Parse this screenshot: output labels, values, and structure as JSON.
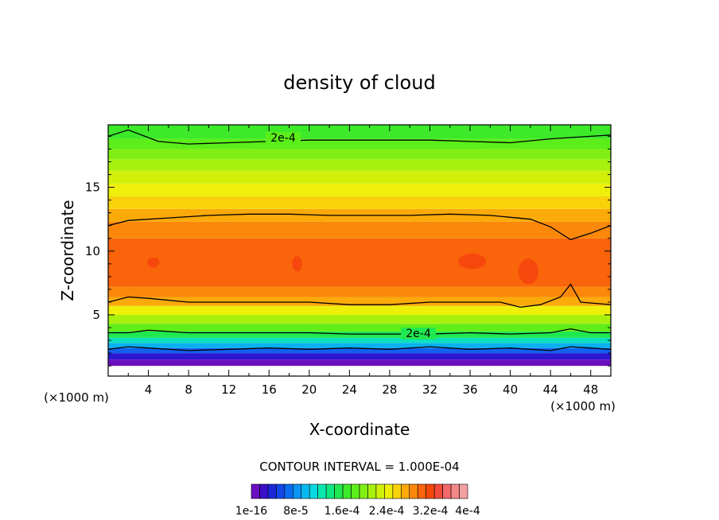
{
  "chart_data": {
    "type": "heatmap",
    "title": "density of cloud",
    "xlabel": "X-coordinate",
    "ylabel": "Z-coordinate",
    "x_unit_left": "(×1000 m)",
    "x_unit_right": "(×1000 m)",
    "xlim": [
      0,
      50
    ],
    "ylim": [
      0.2,
      19.9
    ],
    "x_ticks": [
      "4",
      "8",
      "12",
      "16",
      "20",
      "24",
      "28",
      "32",
      "36",
      "40",
      "44",
      "48"
    ],
    "y_ticks": [
      "5",
      "10",
      "15"
    ],
    "contour_labels": [
      "2e-4",
      "2e-4"
    ],
    "contour_interval_text": "CONTOUR INTERVAL = 1.000E-04",
    "colorbar_labels": [
      "1e-16",
      "8e-5",
      "1.6e-4",
      "2.4e-4",
      "3.2e-4",
      "4e-4"
    ],
    "colorbar_colors": [
      "#6a0fbf",
      "#3a10c8",
      "#1c28d8",
      "#1248e6",
      "#0a6cf0",
      "#0a94f4",
      "#0ab8f0",
      "#0ad8e0",
      "#0ae8b0",
      "#10e880",
      "#20e850",
      "#3cea2a",
      "#5cee1a",
      "#80f014",
      "#a8f00e",
      "#d0f00a",
      "#eef00a",
      "#f8d20a",
      "#fbaa0a",
      "#fb880a",
      "#fa640a",
      "#f6480c",
      "#f24a3a",
      "#f26a6a",
      "#f48888",
      "#f4a0a0"
    ],
    "bands": [
      {
        "z": 1.0,
        "color": "#ffffff"
      },
      {
        "z": 1.5,
        "color": "#6a0fbf"
      },
      {
        "z": 2.0,
        "color": "#2c18d0"
      },
      {
        "z": 2.4,
        "color": "#1260ee"
      },
      {
        "z": 2.8,
        "color": "#0ab0f0"
      },
      {
        "z": 3.2,
        "color": "#0ae0c0"
      },
      {
        "z": 3.7,
        "color": "#20e850"
      },
      {
        "z": 4.3,
        "color": "#60ee18"
      },
      {
        "z": 5.0,
        "color": "#a8f00e"
      },
      {
        "z": 5.7,
        "color": "#eef00a"
      },
      {
        "z": 6.4,
        "color": "#fbaa0a"
      },
      {
        "z": 7.2,
        "color": "#fb880a"
      },
      {
        "z": 11.0,
        "color": "#fa640a"
      },
      {
        "z": 12.3,
        "color": "#fb880a"
      },
      {
        "z": 13.3,
        "color": "#fbaa0a"
      },
      {
        "z": 14.3,
        "color": "#f8d20a"
      },
      {
        "z": 15.3,
        "color": "#eef00a"
      },
      {
        "z": 16.3,
        "color": "#d0f00a"
      },
      {
        "z": 17.2,
        "color": "#a8f00e"
      },
      {
        "z": 18.0,
        "color": "#80f014"
      },
      {
        "z": 18.8,
        "color": "#5cee1a"
      },
      {
        "z": 19.9,
        "color": "#3cea2a"
      }
    ],
    "hotspots": [
      {
        "x": 4.5,
        "z": 9.1,
        "rx": 0.6,
        "rz": 0.4,
        "color": "#f6480c"
      },
      {
        "x": 18.8,
        "z": 9.0,
        "rx": 0.5,
        "rz": 0.6,
        "color": "#f6480c"
      },
      {
        "x": 36.2,
        "z": 9.2,
        "rx": 1.4,
        "rz": 0.6,
        "color": "#f6480c"
      },
      {
        "x": 41.8,
        "z": 8.4,
        "rx": 1.0,
        "rz": 1.0,
        "color": "#f6480c"
      }
    ],
    "contours": [
      {
        "x": [
          0,
          2,
          5,
          8,
          12,
          16,
          20,
          24,
          28,
          32,
          36,
          40,
          44,
          48,
          50
        ],
        "z": [
          19.0,
          19.5,
          18.6,
          18.4,
          18.5,
          18.6,
          18.7,
          18.7,
          18.7,
          18.7,
          18.6,
          18.5,
          18.8,
          19.0,
          19.1
        ]
      },
      {
        "x": [
          0,
          2,
          6,
          10,
          14,
          18,
          22,
          26,
          30,
          34,
          38,
          42,
          44,
          46,
          48,
          50
        ],
        "z": [
          12.0,
          12.4,
          12.6,
          12.8,
          12.9,
          12.9,
          12.8,
          12.8,
          12.8,
          12.9,
          12.8,
          12.5,
          11.9,
          10.9,
          11.4,
          12.0
        ]
      },
      {
        "x": [
          0,
          2,
          4,
          8,
          12,
          16,
          20,
          24,
          28,
          32,
          36,
          39,
          41,
          43,
          45,
          46,
          47,
          50
        ],
        "z": [
          6.0,
          6.4,
          6.3,
          6.0,
          6.0,
          6.0,
          6.0,
          5.8,
          5.8,
          6.0,
          6.0,
          6.0,
          5.6,
          5.8,
          6.4,
          7.4,
          6.0,
          5.8
        ]
      },
      {
        "x": [
          0,
          2,
          4,
          8,
          12,
          16,
          20,
          24,
          28,
          32,
          36,
          40,
          44,
          46,
          48,
          50
        ],
        "z": [
          3.6,
          3.6,
          3.8,
          3.6,
          3.6,
          3.6,
          3.6,
          3.5,
          3.5,
          3.5,
          3.6,
          3.5,
          3.6,
          3.9,
          3.6,
          3.6
        ]
      },
      {
        "x": [
          0,
          2,
          4,
          8,
          12,
          16,
          20,
          24,
          28,
          32,
          36,
          40,
          44,
          46,
          48,
          50
        ],
        "z": [
          2.3,
          2.5,
          2.4,
          2.2,
          2.3,
          2.4,
          2.3,
          2.4,
          2.3,
          2.5,
          2.3,
          2.4,
          2.2,
          2.5,
          2.4,
          2.3
        ]
      }
    ]
  }
}
